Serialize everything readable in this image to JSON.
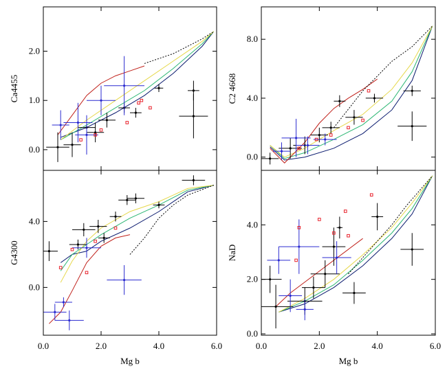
{
  "chart_data": [
    {
      "type": "scatter",
      "y_label": "Ca4455",
      "xlim": [
        0,
        6
      ],
      "xticks": [
        0,
        2,
        4,
        6
      ],
      "ylim": [
        -0.42,
        2.9
      ],
      "yticks": [
        {
          "value": 0,
          "label": "0.0"
        },
        {
          "value": 1,
          "label": "1.0"
        },
        {
          "value": 2,
          "label": "2.0"
        }
      ],
      "series": [
        {
          "marker": "line",
          "color": "#0a1a6e",
          "x": [
            0.6,
            1.5,
            2.5,
            3.5,
            4.5,
            5.5,
            5.9
          ],
          "y": [
            0.25,
            0.45,
            0.75,
            1.1,
            1.55,
            2.1,
            2.4
          ]
        },
        {
          "marker": "line",
          "color": "#2bb673",
          "x": [
            0.6,
            1.5,
            2.5,
            3.5,
            4.5,
            5.5,
            5.9
          ],
          "y": [
            0.2,
            0.5,
            0.85,
            1.2,
            1.65,
            2.15,
            2.4
          ]
        },
        {
          "marker": "line",
          "color": "#e6d84a",
          "x": [
            0.6,
            1.5,
            2.5,
            3.5,
            4.5,
            5.5,
            5.9
          ],
          "y": [
            0.2,
            0.6,
            1.0,
            1.4,
            1.8,
            2.2,
            2.4
          ]
        },
        {
          "marker": "line",
          "color": "#c0201a",
          "x": [
            0.5,
            1.0,
            1.5,
            2.0,
            2.5,
            3.0,
            3.5
          ],
          "y": [
            0.3,
            0.7,
            1.1,
            1.35,
            1.5,
            1.6,
            1.7
          ]
        },
        {
          "marker": "line",
          "dash": true,
          "color": "#000000",
          "x": [
            3.5,
            4.5,
            5.5,
            5.9
          ],
          "y": [
            1.75,
            1.95,
            2.25,
            2.4
          ]
        },
        {
          "marker": "dot",
          "color": "#000000",
          "x": [
            4.0,
            5.2,
            5.2,
            3.2,
            2.8,
            1.5,
            1.0,
            2.2,
            0.5,
            1.8
          ],
          "y": [
            1.25,
            1.2,
            0.68,
            0.75,
            0.85,
            0.45,
            0.1,
            0.6,
            0.05,
            0.35
          ],
          "xerr": [
            0.15,
            0.2,
            0.5,
            0.2,
            0.2,
            0.3,
            0.3,
            0.3,
            0.4,
            0.3
          ],
          "yerr": [
            0.08,
            0.2,
            0.45,
            0.1,
            0.1,
            0.2,
            0.25,
            0.15,
            0.3,
            0.2
          ]
        },
        {
          "marker": "dot",
          "color": "#2a2ad0",
          "x": [
            2.8,
            1.2,
            0.6,
            1.5,
            2.0
          ],
          "y": [
            1.3,
            0.55,
            0.5,
            0.3,
            1.0
          ],
          "xerr": [
            0.7,
            0.5,
            0.3,
            0.4,
            0.5
          ],
          "yerr": [
            0.6,
            0.4,
            0.3,
            0.4,
            0.3
          ]
        },
        {
          "marker": "square",
          "color": "#e8202a",
          "x": [
            3.3,
            3.7,
            2.0,
            1.8,
            1.3,
            2.9,
            3.4
          ],
          "y": [
            0.95,
            0.85,
            0.4,
            0.3,
            0.2,
            0.55,
            1.0
          ]
        }
      ]
    },
    {
      "type": "scatter",
      "y_label": "C2 4668",
      "xlim": [
        0,
        6
      ],
      "xticks": [
        0,
        2,
        4,
        6
      ],
      "ylim": [
        -0.9,
        10.2
      ],
      "yticks": [
        {
          "value": 0,
          "label": "0.0"
        },
        {
          "value": 4,
          "label": "4.0"
        },
        {
          "value": 8,
          "label": "8.0"
        }
      ],
      "series": [
        {
          "marker": "line",
          "color": "#0a1a6e",
          "x": [
            0.3,
            0.8,
            1.5,
            2.5,
            3.5,
            4.5,
            5.2,
            5.9
          ],
          "y": [
            0.7,
            -0.2,
            0.0,
            0.6,
            1.6,
            3.2,
            5.2,
            8.9
          ]
        },
        {
          "marker": "line",
          "color": "#2bb673",
          "x": [
            0.3,
            0.8,
            1.5,
            2.5,
            3.5,
            4.5,
            5.2,
            5.9
          ],
          "y": [
            0.8,
            -0.1,
            0.3,
            1.2,
            2.2,
            3.8,
            5.8,
            8.9
          ]
        },
        {
          "marker": "line",
          "color": "#e6d84a",
          "x": [
            0.3,
            0.8,
            1.5,
            2.5,
            3.5,
            4.5,
            5.2,
            5.9
          ],
          "y": [
            0.8,
            0.0,
            0.6,
            1.8,
            2.9,
            4.6,
            6.4,
            8.9
          ]
        },
        {
          "marker": "line",
          "color": "#c0201a",
          "x": [
            0.3,
            0.8,
            1.5,
            2.0,
            2.5,
            3.0,
            3.5,
            4.0
          ],
          "y": [
            0.6,
            -0.4,
            1.0,
            2.3,
            3.3,
            4.0,
            4.6,
            5.3
          ]
        },
        {
          "marker": "line",
          "dash": true,
          "color": "#000000",
          "x": [
            2.5,
            3.5,
            4.5,
            5.2,
            5.9
          ],
          "y": [
            2.0,
            4.5,
            6.5,
            7.5,
            8.9
          ]
        },
        {
          "marker": "dot",
          "color": "#000000",
          "x": [
            5.2,
            5.2,
            3.9,
            2.7,
            3.2,
            2.4,
            1.5,
            0.3,
            1.0,
            2.0
          ],
          "y": [
            4.5,
            2.1,
            4.0,
            3.8,
            2.7,
            2.0,
            0.8,
            -0.1,
            0.6,
            1.5
          ],
          "xerr": [
            0.3,
            0.5,
            0.3,
            0.2,
            0.3,
            0.3,
            0.4,
            0.3,
            0.4,
            0.3
          ],
          "yerr": [
            0.35,
            1.0,
            0.3,
            0.4,
            0.5,
            0.4,
            0.6,
            0.4,
            0.7,
            0.5
          ]
        },
        {
          "marker": "dot",
          "color": "#2a2ad0",
          "x": [
            1.2,
            1.6,
            0.7,
            2.2
          ],
          "y": [
            1.3,
            0.8,
            0.4,
            1.2
          ],
          "xerr": [
            0.5,
            0.4,
            0.3,
            0.4
          ],
          "yerr": [
            1.3,
            0.6,
            0.6,
            0.4
          ]
        },
        {
          "marker": "square",
          "color": "#e8202a",
          "x": [
            3.7,
            3.5,
            2.4,
            1.9,
            1.3,
            3.0
          ],
          "y": [
            4.5,
            2.5,
            1.5,
            1.2,
            0.6,
            2.0
          ]
        }
      ]
    },
    {
      "type": "scatter",
      "y_label": "G4300",
      "x_label": "Mg b",
      "xlim": [
        0,
        6
      ],
      "xticks": [
        {
          "value": 0,
          "label": "0.0"
        },
        {
          "value": 2,
          "label": "2.0"
        },
        {
          "value": 4,
          "label": "4.0"
        },
        {
          "value": 6,
          "label": "6.0"
        }
      ],
      "ylim": [
        -2.9,
        7.1
      ],
      "yticks": [
        {
          "value": 0,
          "label": "0.0"
        },
        {
          "value": 4,
          "label": "4.0"
        }
      ],
      "series": [
        {
          "marker": "line",
          "color": "#0a1a6e",
          "x": [
            0.6,
            1.0,
            1.5,
            2.0,
            3.0,
            4.0,
            5.0,
            5.9
          ],
          "y": [
            1.5,
            2.0,
            2.2,
            2.8,
            3.6,
            4.6,
            5.8,
            6.2
          ]
        },
        {
          "marker": "line",
          "color": "#2bb673",
          "x": [
            0.6,
            1.0,
            1.5,
            2.0,
            3.0,
            4.0,
            5.0,
            5.9
          ],
          "y": [
            1.0,
            2.0,
            2.6,
            3.2,
            4.2,
            5.0,
            5.9,
            6.2
          ]
        },
        {
          "marker": "line",
          "color": "#e6d84a",
          "x": [
            0.6,
            1.0,
            1.5,
            2.0,
            3.0,
            4.0,
            5.0,
            5.9
          ],
          "y": [
            0.3,
            1.6,
            2.8,
            3.6,
            4.6,
            5.2,
            6.0,
            6.2
          ]
        },
        {
          "marker": "line",
          "color": "#c0201a",
          "x": [
            0.2,
            0.6,
            1.0,
            1.5,
            2.0,
            2.5,
            3.0
          ],
          "y": [
            -2.2,
            -1.5,
            -0.2,
            1.5,
            2.5,
            3.0,
            3.2
          ]
        },
        {
          "marker": "line",
          "dash": true,
          "color": "#000000",
          "x": [
            3.0,
            3.5,
            4.0,
            4.5,
            5.0,
            5.9
          ],
          "y": [
            2.0,
            3.0,
            4.2,
            5.0,
            5.6,
            6.2
          ]
        },
        {
          "marker": "dot",
          "color": "#000000",
          "x": [
            5.2,
            4.0,
            3.2,
            2.9,
            2.5,
            1.9,
            1.4,
            0.2,
            1.2,
            2.1
          ],
          "y": [
            6.5,
            5.0,
            5.4,
            5.3,
            4.3,
            3.7,
            3.5,
            2.2,
            2.6,
            3.0
          ],
          "xerr": [
            0.4,
            0.2,
            0.3,
            0.3,
            0.2,
            0.3,
            0.4,
            0.3,
            0.3,
            0.2
          ],
          "yerr": [
            0.3,
            0.2,
            0.3,
            0.3,
            0.3,
            0.4,
            0.4,
            0.6,
            0.3,
            0.3
          ]
        },
        {
          "marker": "dot",
          "color": "#2a2ad0",
          "x": [
            2.8,
            0.9,
            0.4,
            1.5,
            0.7
          ],
          "y": [
            0.45,
            -2.0,
            -1.5,
            2.4,
            -0.9
          ],
          "xerr": [
            0.6,
            0.5,
            0.4,
            0.5,
            0.3
          ],
          "yerr": [
            0.9,
            0.6,
            0.5,
            0.6,
            0.3
          ]
        },
        {
          "marker": "square",
          "color": "#e8202a",
          "x": [
            1.5,
            1.0,
            1.8,
            2.5,
            0.6
          ],
          "y": [
            0.9,
            2.3,
            2.8,
            3.6,
            1.2
          ]
        }
      ]
    },
    {
      "type": "scatter",
      "y_label": "NaD",
      "x_label": "Mg b",
      "xlim": [
        0,
        6
      ],
      "xticks": [
        {
          "value": 0,
          "label": "0.0"
        },
        {
          "value": 2,
          "label": "2.0"
        },
        {
          "value": 4,
          "label": "4.0"
        },
        {
          "value": 6,
          "label": "6.0"
        }
      ],
      "ylim": [
        -0.05,
        6.0
      ],
      "yticks": [
        {
          "value": 0,
          "label": "0.0"
        },
        {
          "value": 2,
          "label": "2.0"
        },
        {
          "value": 4,
          "label": "4.0"
        }
      ],
      "series": [
        {
          "marker": "line",
          "color": "#0a1a6e",
          "x": [
            0.6,
            1.5,
            2.5,
            3.5,
            4.5,
            5.2,
            5.9
          ],
          "y": [
            0.8,
            1.1,
            1.7,
            2.5,
            3.5,
            4.4,
            5.8
          ]
        },
        {
          "marker": "line",
          "color": "#2bb673",
          "x": [
            0.6,
            1.5,
            2.5,
            3.5,
            4.5,
            5.2,
            5.9
          ],
          "y": [
            0.8,
            1.2,
            1.8,
            2.7,
            3.7,
            4.6,
            5.8
          ]
        },
        {
          "marker": "line",
          "color": "#e6d84a",
          "x": [
            0.6,
            1.5,
            2.5,
            3.5,
            4.5,
            5.2,
            5.9
          ],
          "y": [
            0.8,
            1.3,
            2.0,
            2.9,
            3.9,
            4.8,
            5.8
          ]
        },
        {
          "marker": "line",
          "color": "#c0201a",
          "x": [
            0.5,
            1.0,
            1.5,
            2.0,
            2.5,
            3.0,
            3.5
          ],
          "y": [
            1.0,
            1.5,
            1.9,
            2.3,
            2.7,
            3.1,
            3.5
          ]
        },
        {
          "marker": "line",
          "dash": true,
          "color": "#000000",
          "x": [
            3.0,
            3.5,
            4.0,
            4.5,
            5.0,
            5.9
          ],
          "y": [
            2.2,
            2.8,
            3.4,
            4.0,
            4.7,
            5.8
          ]
        },
        {
          "marker": "dot",
          "color": "#000000",
          "x": [
            4.0,
            5.2,
            2.7,
            2.5,
            3.2,
            1.5,
            0.5,
            2.2,
            1.8,
            0.3
          ],
          "y": [
            4.3,
            3.1,
            3.9,
            3.2,
            1.5,
            1.2,
            1.0,
            2.2,
            1.7,
            2.0
          ],
          "xerr": [
            0.2,
            0.4,
            0.1,
            0.4,
            0.4,
            0.6,
            0.6,
            0.5,
            0.4,
            0.4
          ],
          "yerr": [
            0.5,
            0.6,
            0.4,
            0.7,
            0.4,
            0.5,
            0.8,
            0.5,
            0.4,
            0.5
          ]
        },
        {
          "marker": "dot",
          "color": "#2a2ad0",
          "x": [
            1.3,
            0.6,
            1.0,
            2.6,
            1.5
          ],
          "y": [
            3.2,
            2.7,
            1.4,
            2.8,
            0.9
          ],
          "xerr": [
            0.7,
            0.4,
            0.4,
            0.5,
            0.3
          ],
          "yerr": [
            1.0,
            0.5,
            0.6,
            0.6,
            0.4
          ]
        },
        {
          "marker": "square",
          "color": "#e8202a",
          "x": [
            3.8,
            2.9,
            2.0,
            2.5,
            1.3,
            1.2,
            3.0
          ],
          "y": [
            5.1,
            4.5,
            4.2,
            3.7,
            3.9,
            2.7,
            3.6
          ]
        }
      ]
    }
  ]
}
